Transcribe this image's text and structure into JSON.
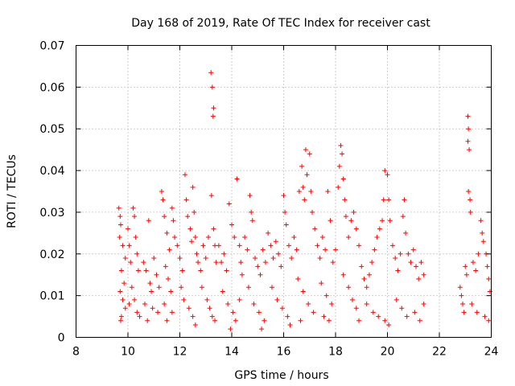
{
  "chart_data": {
    "type": "scatter",
    "title": "Day 168 of 2019, Rate Of TEC Index for receiver cast",
    "xlabel": "GPS time / hours",
    "ylabel": "ROTI / TECUs",
    "xlim": [
      8,
      24
    ],
    "ylim": [
      0,
      0.07
    ],
    "xticks": [
      8,
      10,
      12,
      14,
      16,
      18,
      20,
      22,
      24
    ],
    "xtick_labels": [
      "8",
      "10",
      "12",
      "14",
      "16",
      "18",
      "20",
      "22",
      "24"
    ],
    "yticks": [
      0,
      0.01,
      0.02,
      0.03,
      0.04,
      0.05,
      0.06,
      0.07
    ],
    "ytick_labels": [
      "0",
      "0.01",
      "0.02",
      "0.03",
      "0.04",
      "0.05",
      "0.06",
      "0.07"
    ],
    "grid": true,
    "marker": "+",
    "color": "#ff0000",
    "series": [
      {
        "name": "ROTI",
        "points": [
          [
            9.65,
            0.031
          ],
          [
            9.7,
            0.029
          ],
          [
            9.72,
            0.027
          ],
          [
            9.68,
            0.024
          ],
          [
            9.8,
            0.022
          ],
          [
            9.9,
            0.019
          ],
          [
            9.75,
            0.016
          ],
          [
            9.85,
            0.013
          ],
          [
            9.7,
            0.011
          ],
          [
            9.8,
            0.009
          ],
          [
            9.9,
            0.007
          ],
          [
            9.75,
            0.005
          ],
          [
            9.72,
            0.004
          ],
          [
            10.0,
            0.026
          ],
          [
            10.05,
            0.022
          ],
          [
            10.1,
            0.018
          ],
          [
            10.2,
            0.031
          ],
          [
            10.25,
            0.029
          ],
          [
            10.3,
            0.024
          ],
          [
            10.35,
            0.02
          ],
          [
            10.4,
            0.016
          ],
          [
            10.15,
            0.012
          ],
          [
            10.25,
            0.009
          ],
          [
            10.35,
            0.006
          ],
          [
            10.45,
            0.005
          ],
          [
            10.05,
            0.008
          ],
          [
            10.6,
            0.018
          ],
          [
            10.7,
            0.016
          ],
          [
            10.8,
            0.028
          ],
          [
            10.85,
            0.013
          ],
          [
            10.9,
            0.011
          ],
          [
            11.0,
            0.019
          ],
          [
            11.1,
            0.015
          ],
          [
            11.2,
            0.012
          ],
          [
            10.65,
            0.008
          ],
          [
            10.95,
            0.007
          ],
          [
            11.15,
            0.006
          ],
          [
            10.75,
            0.004
          ],
          [
            11.3,
            0.035
          ],
          [
            11.35,
            0.033
          ],
          [
            11.4,
            0.029
          ],
          [
            11.5,
            0.025
          ],
          [
            11.6,
            0.021
          ],
          [
            11.7,
            0.031
          ],
          [
            11.75,
            0.028
          ],
          [
            11.8,
            0.024
          ],
          [
            11.45,
            0.017
          ],
          [
            11.55,
            0.014
          ],
          [
            11.65,
            0.011
          ],
          [
            11.4,
            0.008
          ],
          [
            11.7,
            0.006
          ],
          [
            11.5,
            0.004
          ],
          [
            11.9,
            0.022
          ],
          [
            12.0,
            0.019
          ],
          [
            12.1,
            0.016
          ],
          [
            12.2,
            0.039
          ],
          [
            12.25,
            0.033
          ],
          [
            12.3,
            0.029
          ],
          [
            12.4,
            0.026
          ],
          [
            12.45,
            0.023
          ],
          [
            12.5,
            0.036
          ],
          [
            12.55,
            0.03
          ],
          [
            12.6,
            0.024
          ],
          [
            12.65,
            0.02
          ],
          [
            12.05,
            0.012
          ],
          [
            12.15,
            0.009
          ],
          [
            12.35,
            0.007
          ],
          [
            12.5,
            0.005
          ],
          [
            12.6,
            0.003
          ],
          [
            12.7,
            0.018
          ],
          [
            12.8,
            0.016
          ],
          [
            12.9,
            0.022
          ],
          [
            13.0,
            0.019
          ],
          [
            13.1,
            0.024
          ],
          [
            13.2,
            0.0635
          ],
          [
            13.25,
            0.06
          ],
          [
            13.3,
            0.055
          ],
          [
            13.28,
            0.053
          ],
          [
            13.22,
            0.034
          ],
          [
            13.3,
            0.026
          ],
          [
            13.35,
            0.022
          ],
          [
            13.4,
            0.018
          ],
          [
            12.85,
            0.012
          ],
          [
            13.05,
            0.009
          ],
          [
            13.15,
            0.007
          ],
          [
            13.25,
            0.005
          ],
          [
            13.35,
            0.004
          ],
          [
            13.5,
            0.022
          ],
          [
            13.6,
            0.018
          ],
          [
            13.7,
            0.02
          ],
          [
            13.8,
            0.016
          ],
          [
            13.9,
            0.032
          ],
          [
            14.0,
            0.027
          ],
          [
            14.1,
            0.024
          ],
          [
            14.2,
            0.038
          ],
          [
            14.3,
            0.022
          ],
          [
            14.35,
            0.018
          ],
          [
            14.4,
            0.015
          ],
          [
            13.65,
            0.011
          ],
          [
            13.85,
            0.008
          ],
          [
            14.05,
            0.006
          ],
          [
            14.15,
            0.004
          ],
          [
            13.95,
            0.002
          ],
          [
            14.3,
            0.009
          ],
          [
            14.5,
            0.024
          ],
          [
            14.6,
            0.021
          ],
          [
            14.7,
            0.034
          ],
          [
            14.75,
            0.03
          ],
          [
            14.8,
            0.028
          ],
          [
            14.9,
            0.019
          ],
          [
            15.0,
            0.017
          ],
          [
            15.1,
            0.015
          ],
          [
            15.2,
            0.021
          ],
          [
            15.3,
            0.018
          ],
          [
            14.65,
            0.012
          ],
          [
            14.85,
            0.008
          ],
          [
            15.05,
            0.006
          ],
          [
            15.25,
            0.004
          ],
          [
            15.15,
            0.002
          ],
          [
            15.4,
            0.025
          ],
          [
            15.5,
            0.022
          ],
          [
            15.6,
            0.019
          ],
          [
            15.7,
            0.023
          ],
          [
            15.8,
            0.02
          ],
          [
            15.9,
            0.017
          ],
          [
            16.0,
            0.034
          ],
          [
            16.05,
            0.03
          ],
          [
            16.1,
            0.027
          ],
          [
            16.2,
            0.022
          ],
          [
            16.3,
            0.019
          ],
          [
            15.55,
            0.012
          ],
          [
            15.75,
            0.009
          ],
          [
            15.95,
            0.007
          ],
          [
            16.15,
            0.005
          ],
          [
            16.25,
            0.003
          ],
          [
            16.4,
            0.024
          ],
          [
            16.5,
            0.021
          ],
          [
            16.6,
            0.035
          ],
          [
            16.7,
            0.041
          ],
          [
            16.75,
            0.036
          ],
          [
            16.8,
            0.033
          ],
          [
            16.85,
            0.045
          ],
          [
            16.9,
            0.039
          ],
          [
            17.0,
            0.044
          ],
          [
            17.05,
            0.035
          ],
          [
            17.1,
            0.03
          ],
          [
            17.2,
            0.026
          ],
          [
            16.55,
            0.014
          ],
          [
            16.75,
            0.011
          ],
          [
            16.95,
            0.008
          ],
          [
            17.15,
            0.006
          ],
          [
            16.65,
            0.004
          ],
          [
            17.3,
            0.022
          ],
          [
            17.4,
            0.019
          ],
          [
            17.5,
            0.024
          ],
          [
            17.6,
            0.021
          ],
          [
            17.7,
            0.035
          ],
          [
            17.8,
            0.028
          ],
          [
            17.9,
            0.018
          ],
          [
            18.0,
            0.021
          ],
          [
            17.45,
            0.013
          ],
          [
            17.65,
            0.01
          ],
          [
            17.85,
            0.008
          ],
          [
            17.55,
            0.005
          ],
          [
            17.75,
            0.004
          ],
          [
            18.1,
            0.036
          ],
          [
            18.15,
            0.041
          ],
          [
            18.2,
            0.046
          ],
          [
            18.25,
            0.044
          ],
          [
            18.3,
            0.038
          ],
          [
            18.35,
            0.033
          ],
          [
            18.4,
            0.029
          ],
          [
            18.5,
            0.024
          ],
          [
            18.6,
            0.028
          ],
          [
            18.7,
            0.03
          ],
          [
            18.8,
            0.026
          ],
          [
            18.9,
            0.022
          ],
          [
            18.3,
            0.015
          ],
          [
            18.5,
            0.012
          ],
          [
            18.65,
            0.009
          ],
          [
            18.8,
            0.007
          ],
          [
            18.9,
            0.004
          ],
          [
            19.0,
            0.017
          ],
          [
            19.1,
            0.014
          ],
          [
            19.2,
            0.012
          ],
          [
            19.3,
            0.015
          ],
          [
            19.4,
            0.018
          ],
          [
            19.5,
            0.021
          ],
          [
            19.6,
            0.024
          ],
          [
            19.7,
            0.026
          ],
          [
            19.8,
            0.028
          ],
          [
            19.85,
            0.033
          ],
          [
            19.9,
            0.04
          ],
          [
            20.0,
            0.039
          ],
          [
            20.05,
            0.033
          ],
          [
            20.1,
            0.028
          ],
          [
            19.2,
            0.008
          ],
          [
            19.45,
            0.006
          ],
          [
            19.65,
            0.005
          ],
          [
            19.9,
            0.004
          ],
          [
            20.05,
            0.003
          ],
          [
            20.2,
            0.022
          ],
          [
            20.3,
            0.019
          ],
          [
            20.4,
            0.016
          ],
          [
            20.5,
            0.02
          ],
          [
            20.6,
            0.029
          ],
          [
            20.65,
            0.033
          ],
          [
            20.7,
            0.025
          ],
          [
            20.8,
            0.02
          ],
          [
            20.9,
            0.018
          ],
          [
            21.0,
            0.021
          ],
          [
            21.1,
            0.017
          ],
          [
            21.2,
            0.014
          ],
          [
            21.3,
            0.018
          ],
          [
            21.4,
            0.015
          ],
          [
            20.35,
            0.009
          ],
          [
            20.55,
            0.007
          ],
          [
            20.75,
            0.005
          ],
          [
            21.05,
            0.006
          ],
          [
            21.25,
            0.004
          ],
          [
            21.4,
            0.008
          ],
          [
            22.8,
            0.012
          ],
          [
            22.85,
            0.01
          ],
          [
            22.9,
            0.008
          ],
          [
            22.95,
            0.006
          ],
          [
            23.0,
            0.017
          ],
          [
            23.05,
            0.015
          ],
          [
            23.1,
            0.053
          ],
          [
            23.12,
            0.05
          ],
          [
            23.1,
            0.047
          ],
          [
            23.15,
            0.045
          ],
          [
            23.12,
            0.035
          ],
          [
            23.18,
            0.033
          ],
          [
            23.2,
            0.03
          ],
          [
            23.3,
            0.018
          ],
          [
            23.4,
            0.016
          ],
          [
            23.5,
            0.02
          ],
          [
            23.6,
            0.028
          ],
          [
            23.65,
            0.025
          ],
          [
            23.7,
            0.023
          ],
          [
            23.8,
            0.02
          ],
          [
            23.85,
            0.017
          ],
          [
            23.9,
            0.014
          ],
          [
            23.95,
            0.011
          ],
          [
            23.25,
            0.008
          ],
          [
            23.45,
            0.006
          ],
          [
            23.75,
            0.005
          ],
          [
            23.9,
            0.004
          ]
        ]
      }
    ]
  }
}
